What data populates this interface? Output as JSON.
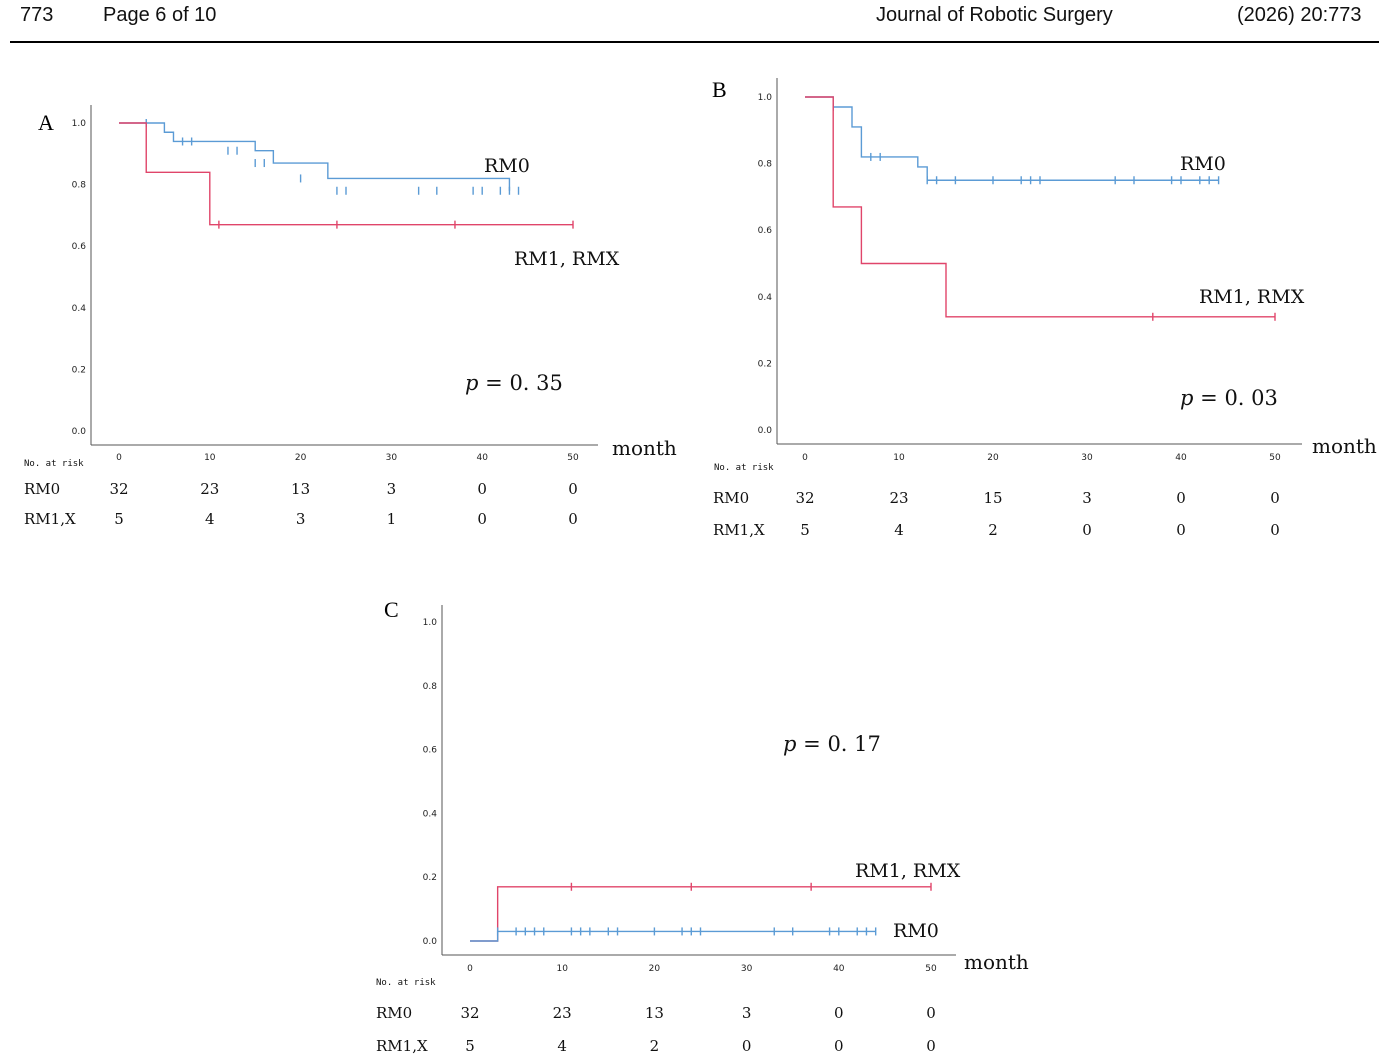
{
  "header": {
    "article_number": "773",
    "page": "Page 6 of 10",
    "journal": "Journal of Robotic Surgery",
    "citation": "(2026)  20:773"
  },
  "chart_data": [
    {
      "type": "line",
      "panel": "A",
      "xlabel": "month",
      "ylabel": "",
      "xlim": [
        0,
        50
      ],
      "ylim": [
        0,
        1.0
      ],
      "xticks": [
        "0",
        "10",
        "20",
        "30",
        "40",
        "50"
      ],
      "yticks": [
        "0.0",
        "0.2",
        "0.4",
        "0.6",
        "0.8",
        "1.0"
      ],
      "p_value": "p  =  0. 35",
      "series": [
        {
          "name": "RM0",
          "color": "#5b9bd5",
          "steps": [
            [
              0,
              1.0
            ],
            [
              5,
              0.97
            ],
            [
              6,
              0.94
            ],
            [
              15,
              0.91
            ],
            [
              17,
              0.87
            ],
            [
              23,
              0.82
            ],
            [
              43,
              0.78
            ]
          ],
          "censor_x": [
            3,
            7,
            8,
            12,
            13,
            15,
            16,
            20,
            24,
            25,
            33,
            35,
            39,
            40,
            42,
            43,
            44
          ],
          "censor_y": [
            1.0,
            0.94,
            0.94,
            0.91,
            0.91,
            0.87,
            0.87,
            0.82,
            0.78,
            0.78,
            0.78,
            0.78,
            0.78,
            0.78,
            0.78,
            0.78,
            0.78
          ]
        },
        {
          "name": "RM1, RMX",
          "color": "#e0456a",
          "steps": [
            [
              0,
              1.0
            ],
            [
              3,
              0.84
            ],
            [
              10,
              0.67
            ],
            [
              50,
              0.67
            ]
          ],
          "censor_x": [
            11,
            24,
            37,
            50
          ],
          "censor_y": [
            0.67,
            0.67,
            0.67,
            0.67
          ]
        }
      ],
      "risk_table": {
        "header": "No. at risk",
        "rows": [
          {
            "label": "RM0",
            "values": [
              "32",
              "23",
              "13",
              "3",
              "0",
              "0"
            ]
          },
          {
            "label": "RM1,X",
            "values": [
              "5",
              "4",
              "3",
              "1",
              "0",
              "0"
            ]
          }
        ]
      }
    },
    {
      "type": "line",
      "panel": "B",
      "xlabel": "month",
      "ylabel": "",
      "xlim": [
        0,
        50
      ],
      "ylim": [
        0,
        1.0
      ],
      "xticks": [
        "0",
        "10",
        "20",
        "30",
        "40",
        "50"
      ],
      "yticks": [
        "0.0",
        "0.2",
        "0.4",
        "0.6",
        "0.8",
        "1.0"
      ],
      "p_value": "p  =  0. 03",
      "series": [
        {
          "name": "RM0",
          "color": "#5b9bd5",
          "steps": [
            [
              0,
              1.0
            ],
            [
              3,
              0.97
            ],
            [
              5,
              0.91
            ],
            [
              6,
              0.82
            ],
            [
              12,
              0.79
            ],
            [
              13,
              0.75
            ],
            [
              44,
              0.75
            ]
          ],
          "censor_x": [
            3,
            7,
            8,
            13,
            14,
            16,
            20,
            23,
            24,
            25,
            33,
            35,
            39,
            40,
            42,
            43,
            44
          ],
          "censor_y": [
            0.97,
            0.82,
            0.82,
            0.75,
            0.75,
            0.75,
            0.75,
            0.75,
            0.75,
            0.75,
            0.75,
            0.75,
            0.75,
            0.75,
            0.75,
            0.75,
            0.75
          ]
        },
        {
          "name": "RM1, RMX",
          "color": "#e0456a",
          "steps": [
            [
              0,
              1.0
            ],
            [
              3,
              0.67
            ],
            [
              6,
              0.5
            ],
            [
              15,
              0.34
            ],
            [
              50,
              0.34
            ]
          ],
          "censor_x": [
            37,
            50
          ],
          "censor_y": [
            0.34,
            0.34
          ]
        }
      ],
      "risk_table": {
        "header": "No. at risk",
        "rows": [
          {
            "label": "RM0",
            "values": [
              "32",
              "23",
              "15",
              "3",
              "0",
              "0"
            ]
          },
          {
            "label": "RM1,X",
            "values": [
              "5",
              "4",
              "2",
              "0",
              "0",
              "0"
            ]
          }
        ]
      }
    },
    {
      "type": "line",
      "panel": "C",
      "xlabel": "month",
      "ylabel": "",
      "xlim": [
        0,
        50
      ],
      "ylim": [
        0,
        1.0
      ],
      "xticks": [
        "0",
        "10",
        "20",
        "30",
        "40",
        "50"
      ],
      "yticks": [
        "0.0",
        "0.2",
        "0.4",
        "0.6",
        "0.8",
        "1.0"
      ],
      "p_value": "p  =  0. 17",
      "series": [
        {
          "name": "RM1, RMX",
          "color": "#e0456a",
          "steps": [
            [
              0,
              0.0
            ],
            [
              3,
              0.17
            ],
            [
              50,
              0.17
            ]
          ],
          "censor_x": [
            11,
            24,
            37,
            50
          ],
          "censor_y": [
            0.17,
            0.17,
            0.17,
            0.17
          ]
        },
        {
          "name": "RM0",
          "color": "#5b9bd5",
          "steps": [
            [
              0,
              0.0
            ],
            [
              3,
              0.03
            ],
            [
              44,
              0.03
            ]
          ],
          "censor_x": [
            3,
            5,
            6,
            7,
            8,
            11,
            12,
            13,
            15,
            16,
            20,
            23,
            24,
            25,
            33,
            35,
            39,
            40,
            42,
            43,
            44
          ],
          "censor_y": [
            0.03,
            0.03,
            0.03,
            0.03,
            0.03,
            0.03,
            0.03,
            0.03,
            0.03,
            0.03,
            0.03,
            0.03,
            0.03,
            0.03,
            0.03,
            0.03,
            0.03,
            0.03,
            0.03,
            0.03,
            0.03
          ]
        }
      ],
      "risk_table": {
        "header": "No. at risk",
        "rows": [
          {
            "label": "RM0",
            "values": [
              "32",
              "23",
              "13",
              "3",
              "0",
              "0"
            ]
          },
          {
            "label": "RM1,X",
            "values": [
              "5",
              "4",
              "2",
              "0",
              "0",
              "0"
            ]
          }
        ]
      }
    }
  ]
}
